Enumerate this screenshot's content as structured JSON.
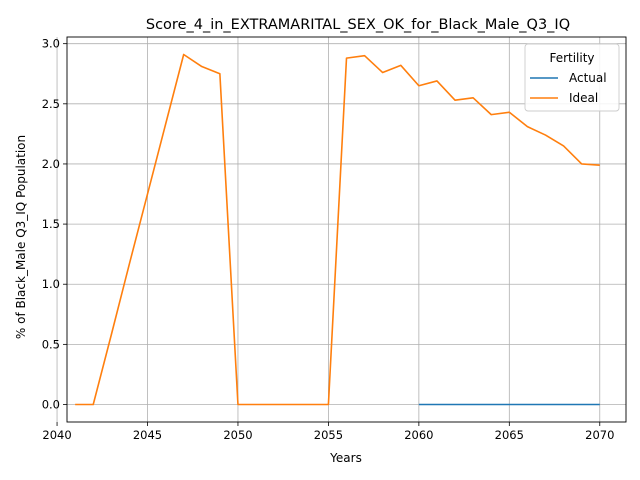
{
  "chart_data": {
    "type": "line",
    "title": "Score_4_in_EXTRAMARITAL_SEX_OK_for_Black_Male_Q3_IQ",
    "xlabel": "Years",
    "ylabel": "% of Black_Male Q3_IQ Population",
    "xlim": [
      2040.55,
      2071.45
    ],
    "ylim": [
      -0.1455,
      3.0555
    ],
    "xticks": [
      2040,
      2045,
      2050,
      2055,
      2060,
      2065,
      2070
    ],
    "yticks": [
      0.0,
      0.5,
      1.0,
      1.5,
      2.0,
      2.5,
      3.0
    ],
    "xtick_labels": [
      "2040",
      "2045",
      "2050",
      "2055",
      "2060",
      "2065",
      "2070"
    ],
    "ytick_labels": [
      "0.0",
      "0.5",
      "1.0",
      "1.5",
      "2.0",
      "2.5",
      "3.0"
    ],
    "grid": true,
    "legend": {
      "title": "Fertility",
      "position": "top-right"
    },
    "series": [
      {
        "name": "Actual",
        "color": "#1f77b4",
        "x": [
          2060,
          2061,
          2062,
          2063,
          2064,
          2065,
          2066,
          2067,
          2068,
          2069,
          2070
        ],
        "y": [
          0,
          0,
          0,
          0,
          0,
          0,
          0,
          0,
          0,
          0,
          0
        ]
      },
      {
        "name": "Ideal",
        "color": "#ff7f0e",
        "x": [
          2041,
          2042,
          2043,
          2044,
          2045,
          2046,
          2047,
          2048,
          2049,
          2050,
          2051,
          2052,
          2053,
          2054,
          2055,
          2056,
          2057,
          2058,
          2059,
          2060,
          2061,
          2062,
          2063,
          2064,
          2065,
          2066,
          2067,
          2068,
          2069,
          2070
        ],
        "y": [
          0.0,
          0.0,
          0.58,
          1.17,
          1.75,
          2.33,
          2.91,
          2.81,
          2.75,
          0.0,
          0.0,
          0.0,
          0.0,
          0.0,
          0.0,
          2.88,
          2.9,
          2.76,
          2.82,
          2.65,
          2.69,
          2.53,
          2.55,
          2.41,
          2.43,
          2.31,
          2.24,
          2.15,
          2.0,
          1.99
        ]
      }
    ]
  }
}
